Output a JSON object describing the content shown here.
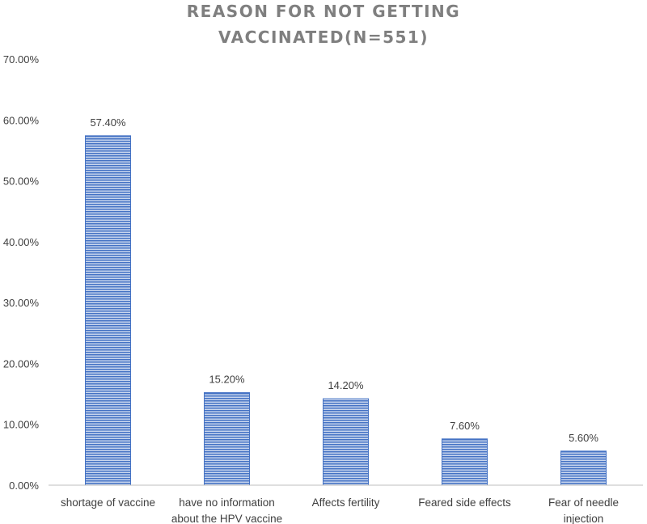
{
  "chart_data": {
    "type": "bar",
    "title_lines": [
      "REASON FOR NOT GETTING",
      "VACCINATED(N=551)"
    ],
    "xlabel": "",
    "ylabel": "",
    "categories": [
      [
        "shortage of vaccine"
      ],
      [
        "have no information",
        "about the HPV vaccine"
      ],
      [
        "Affects fertility"
      ],
      [
        "Feared side effects"
      ],
      [
        "Fear of needle",
        "injection"
      ]
    ],
    "values": [
      57.4,
      15.2,
      14.2,
      7.6,
      5.6
    ],
    "data_labels": [
      "57.40%",
      "15.20%",
      "14.20%",
      "7.60%",
      "5.60%"
    ],
    "ylim": [
      0,
      70
    ],
    "yticks": [
      0,
      10,
      20,
      30,
      40,
      50,
      60,
      70
    ],
    "ytick_labels": [
      "0.00%",
      "10.00%",
      "20.00%",
      "30.00%",
      "40.00%",
      "50.00%",
      "60.00%",
      "70.00%"
    ],
    "bar_color": "#4472c4",
    "bar_fill_color": "#8faadc",
    "grid": false,
    "legend": "none"
  }
}
